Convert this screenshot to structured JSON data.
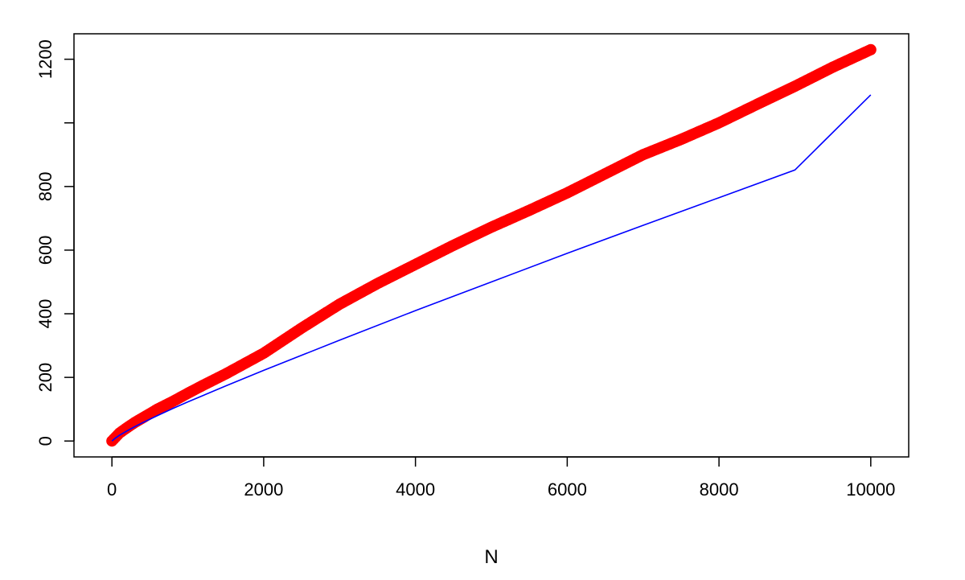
{
  "chart_data": {
    "type": "scatter",
    "title": "",
    "xlabel": "N",
    "ylabel": "",
    "xlim": [
      -500,
      10500
    ],
    "ylim": [
      -50,
      1280
    ],
    "x_ticks": [
      0,
      2000,
      4000,
      6000,
      8000,
      10000
    ],
    "x_tick_labels": [
      "0",
      "2000",
      "4000",
      "6000",
      "8000",
      "10000"
    ],
    "y_ticks": [
      0,
      200,
      400,
      600,
      800,
      1000,
      1200
    ],
    "y_tick_labels": [
      "0",
      "200",
      "400",
      "600",
      "800",
      "",
      "1200"
    ],
    "grid": false,
    "series": [
      {
        "kind": "points",
        "color": "#ff0000",
        "x": [
          0,
          100,
          200,
          300,
          400,
          500,
          600,
          800,
          1000,
          1200,
          1500,
          2000,
          2500,
          3000,
          3500,
          4000,
          4500,
          5000,
          5500,
          6000,
          6500,
          7000,
          7500,
          8000,
          8500,
          9000,
          9500,
          10000
        ],
        "y": [
          0,
          25,
          42,
          58,
          72,
          86,
          100,
          124,
          150,
          175,
          211,
          276,
          355,
          430,
          495,
          555,
          615,
          672,
          725,
          780,
          840,
          900,
          948,
          1000,
          1058,
          1115,
          1175,
          1230
        ]
      },
      {
        "kind": "line",
        "color": "#0000ff",
        "x": [
          0,
          50,
          100,
          200,
          300,
          400,
          600,
          800,
          1000,
          1500,
          2000,
          3000,
          4000,
          5000,
          6000,
          7000,
          8000,
          9000,
          10000
        ],
        "y": [
          0,
          10,
          18,
          32,
          45,
          57,
          80,
          102,
          123,
          173,
          222,
          317,
          410,
          500,
          590,
          678,
          765,
          852,
          1088
        ]
      }
    ]
  }
}
